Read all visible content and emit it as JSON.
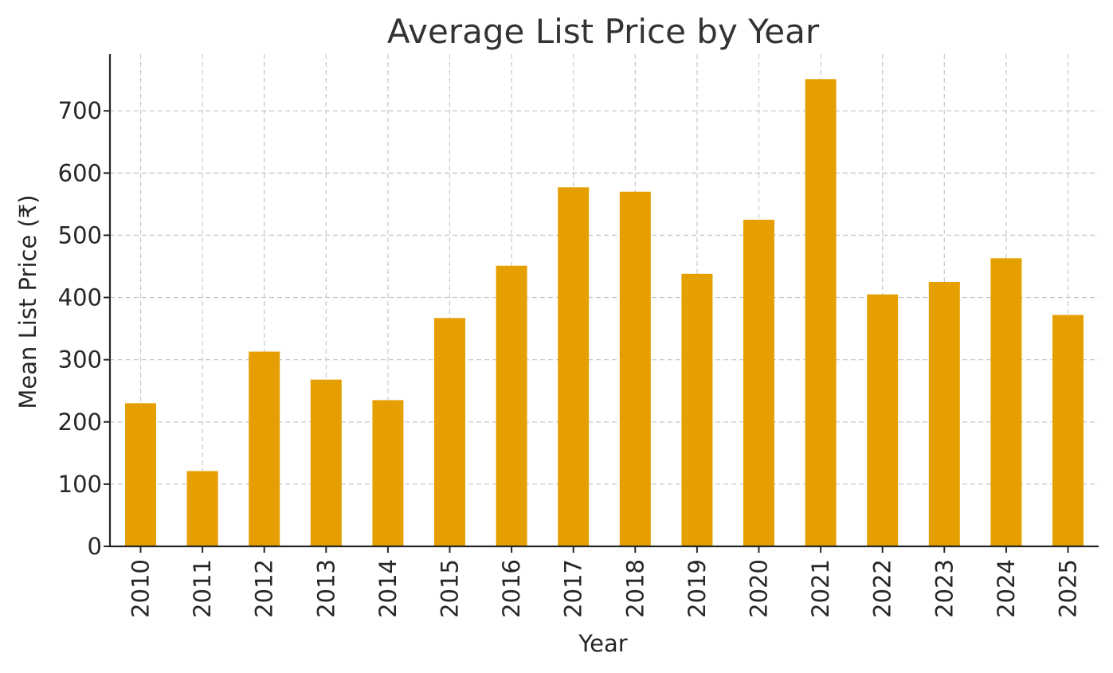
{
  "chart_data": {
    "type": "bar",
    "title": "Average List Price by Year",
    "xlabel": "Year",
    "ylabel": "Mean List Price (₹)",
    "categories": [
      "2010",
      "2011",
      "2012",
      "2013",
      "2014",
      "2015",
      "2016",
      "2017",
      "2018",
      "2019",
      "2020",
      "2021",
      "2022",
      "2023",
      "2024",
      "2025"
    ],
    "values": [
      230,
      121,
      313,
      268,
      235,
      367,
      451,
      577,
      570,
      438,
      525,
      751,
      405,
      425,
      463,
      372
    ],
    "ylim": [
      0,
      790
    ],
    "yticks": [
      0,
      100,
      200,
      300,
      400,
      500,
      600,
      700
    ],
    "grid": true,
    "bar_color": "#E69F00",
    "legend": "none"
  }
}
